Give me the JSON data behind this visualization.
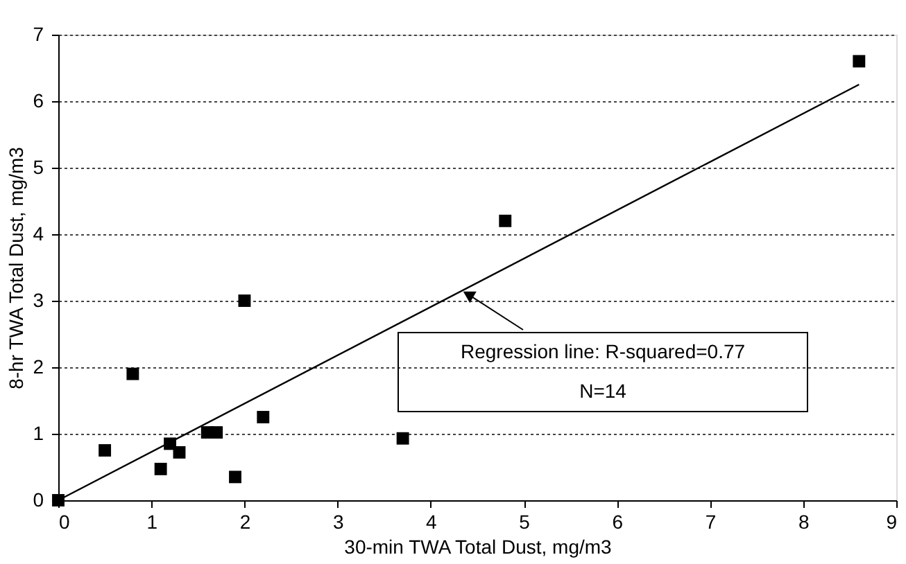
{
  "chart_data": {
    "type": "scatter",
    "xlabel": "30-min TWA Total Dust, mg/m3",
    "ylabel": "8-hr TWA Total Dust, mg/m3",
    "xlim": [
      0,
      9
    ],
    "xticks": [
      0,
      1,
      2,
      3,
      4,
      5,
      6,
      7,
      8,
      9
    ],
    "ylim": [
      0,
      7
    ],
    "yticks": [
      0,
      1,
      2,
      3,
      4,
      5,
      6,
      7
    ],
    "grid": "y",
    "legend": false,
    "series": [
      {
        "type": "scatter",
        "marker": "square",
        "color": "#000000",
        "x": [
          0,
          0.5,
          0.8,
          1.1,
          1.2,
          1.3,
          1.6,
          1.7,
          1.9,
          2.0,
          2.2,
          3.7,
          4.8,
          8.6
        ],
        "values": [
          0,
          0.75,
          1.9,
          0.47,
          0.85,
          0.72,
          1.02,
          1.02,
          0.35,
          3.0,
          1.25,
          0.93,
          4.2,
          6.6
        ]
      },
      {
        "type": "line",
        "color": "#000000",
        "line_style": "solid",
        "x": [
          0,
          8.6
        ],
        "values": [
          0,
          6.25
        ]
      }
    ],
    "annotations": [
      {
        "text": "Regression line: R-squared=0.77",
        "x": 4.42,
        "y": 3.08
      },
      "N=14"
    ]
  }
}
